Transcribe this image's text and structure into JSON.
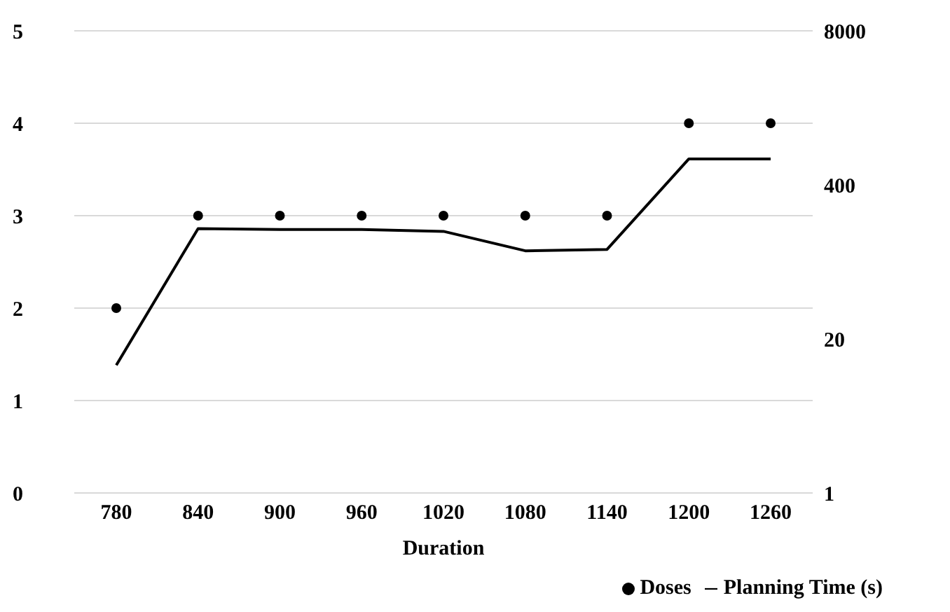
{
  "chart_data": {
    "type": "line",
    "xlabel": "Duration",
    "categories": [
      "780",
      "840",
      "900",
      "960",
      "1020",
      "1080",
      "1140",
      "1200",
      "1260"
    ],
    "series": [
      {
        "name": "Doses",
        "type": "scatter",
        "color": "#000000",
        "marker": "circle",
        "values": [
          2,
          3,
          3,
          3,
          3,
          3,
          3,
          4,
          4
        ]
      },
      {
        "name": "Planning Time (s)",
        "axis": "y2",
        "color": "#000000",
        "marker": "none",
        "values": [
          12,
          171,
          168,
          168,
          162,
          111,
          114,
          663,
          663
        ]
      }
    ],
    "ylim": [
      0,
      5
    ],
    "yticks": [
      0,
      1,
      2,
      3,
      4,
      5
    ],
    "y2lim": [
      1,
      8000
    ],
    "y2ticks": [
      1,
      20,
      400,
      8000
    ],
    "log": "y2",
    "grid": "y",
    "legend": "bottom right"
  }
}
